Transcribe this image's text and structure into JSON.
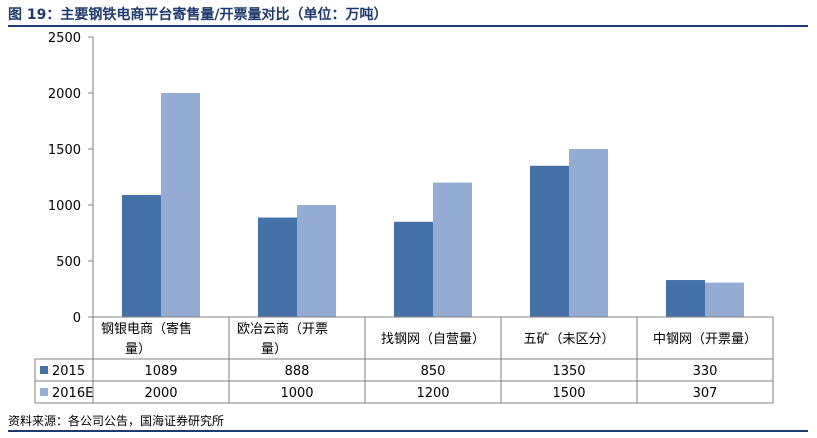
{
  "figure": {
    "title": "图 19：主要钢铁电商平台寄售量/开票量对比（单位：万吨）",
    "source": "资料来源：各公司公告，国海证券研究所"
  },
  "chart_data": {
    "type": "bar",
    "title": "",
    "xlabel": "",
    "ylabel": "",
    "ylim": [
      0,
      2500
    ],
    "yticks": [
      0,
      500,
      1000,
      1500,
      2000,
      2500
    ],
    "grid": false,
    "legend": "data-table",
    "categories": [
      [
        "钢银电商（寄售",
        "量）"
      ],
      [
        "欧冶云商（开票",
        "量）"
      ],
      [
        "找钢网（自营量）"
      ],
      [
        "五矿（未区分）"
      ],
      [
        "中钢网（开票量）"
      ]
    ],
    "series": [
      {
        "name": "2015",
        "color": "#4471a7",
        "values": [
          1089,
          888,
          850,
          1350,
          330
        ]
      },
      {
        "name": "2016E",
        "color": "#94abd3",
        "values": [
          2000,
          1000,
          1200,
          1500,
          307
        ]
      }
    ]
  }
}
